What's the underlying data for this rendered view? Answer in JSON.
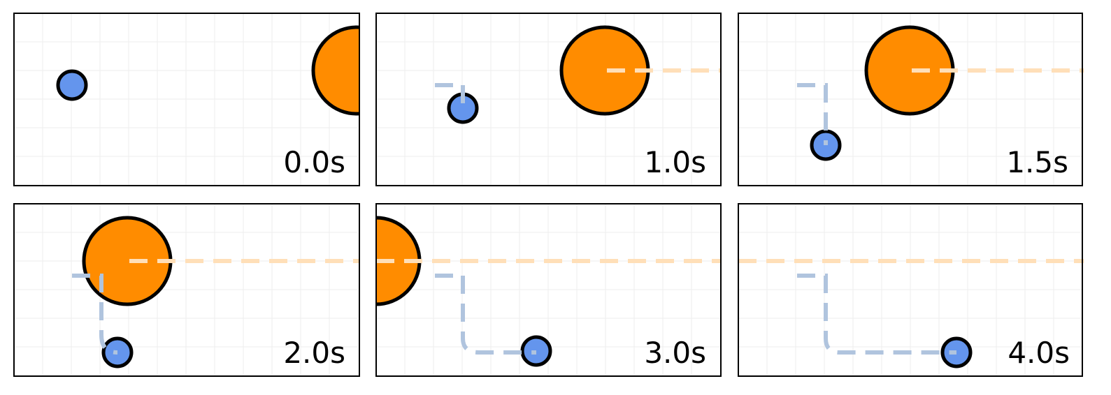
{
  "panels": [
    {
      "label": "0.0s"
    },
    {
      "label": "1.0s"
    },
    {
      "label": "1.5s"
    },
    {
      "label": "2.0s"
    },
    {
      "label": "3.0s"
    },
    {
      "label": "4.0s"
    }
  ]
}
